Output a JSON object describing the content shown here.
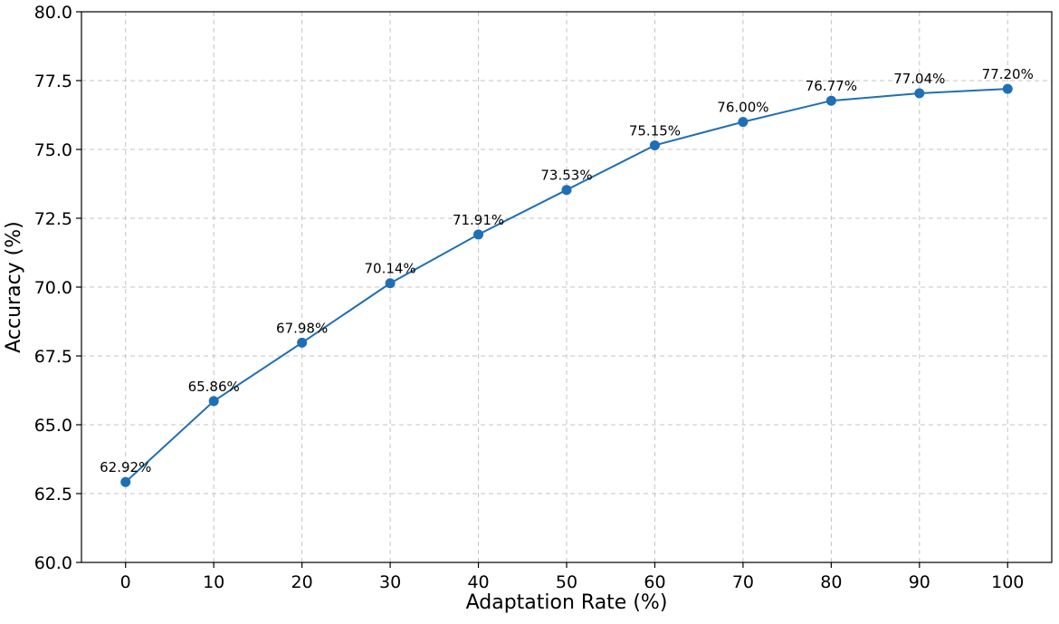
{
  "chart_data": {
    "type": "line",
    "title": "",
    "xlabel": "Adaptation Rate (%)",
    "ylabel": "Accuracy (%)",
    "xlim": [
      -5,
      105
    ],
    "ylim": [
      60,
      80
    ],
    "grid": true,
    "x_ticks": [
      "0",
      "10",
      "20",
      "30",
      "40",
      "50",
      "60",
      "70",
      "80",
      "90",
      "100"
    ],
    "y_ticks": [
      "60.0",
      "62.5",
      "65.0",
      "67.5",
      "70.0",
      "72.5",
      "75.0",
      "77.5",
      "80.0"
    ],
    "x": [
      0,
      10,
      20,
      30,
      40,
      50,
      60,
      70,
      80,
      90,
      100
    ],
    "values": [
      62.92,
      65.86,
      67.98,
      70.14,
      71.91,
      73.53,
      75.15,
      76.0,
      76.77,
      77.04,
      77.2
    ],
    "data_labels": [
      "62.92%",
      "65.86%",
      "67.98%",
      "70.14%",
      "71.91%",
      "73.53%",
      "75.15%",
      "76.00%",
      "76.77%",
      "77.04%",
      "77.20%"
    ],
    "color": "#1f6fb4",
    "marker": "circle"
  }
}
